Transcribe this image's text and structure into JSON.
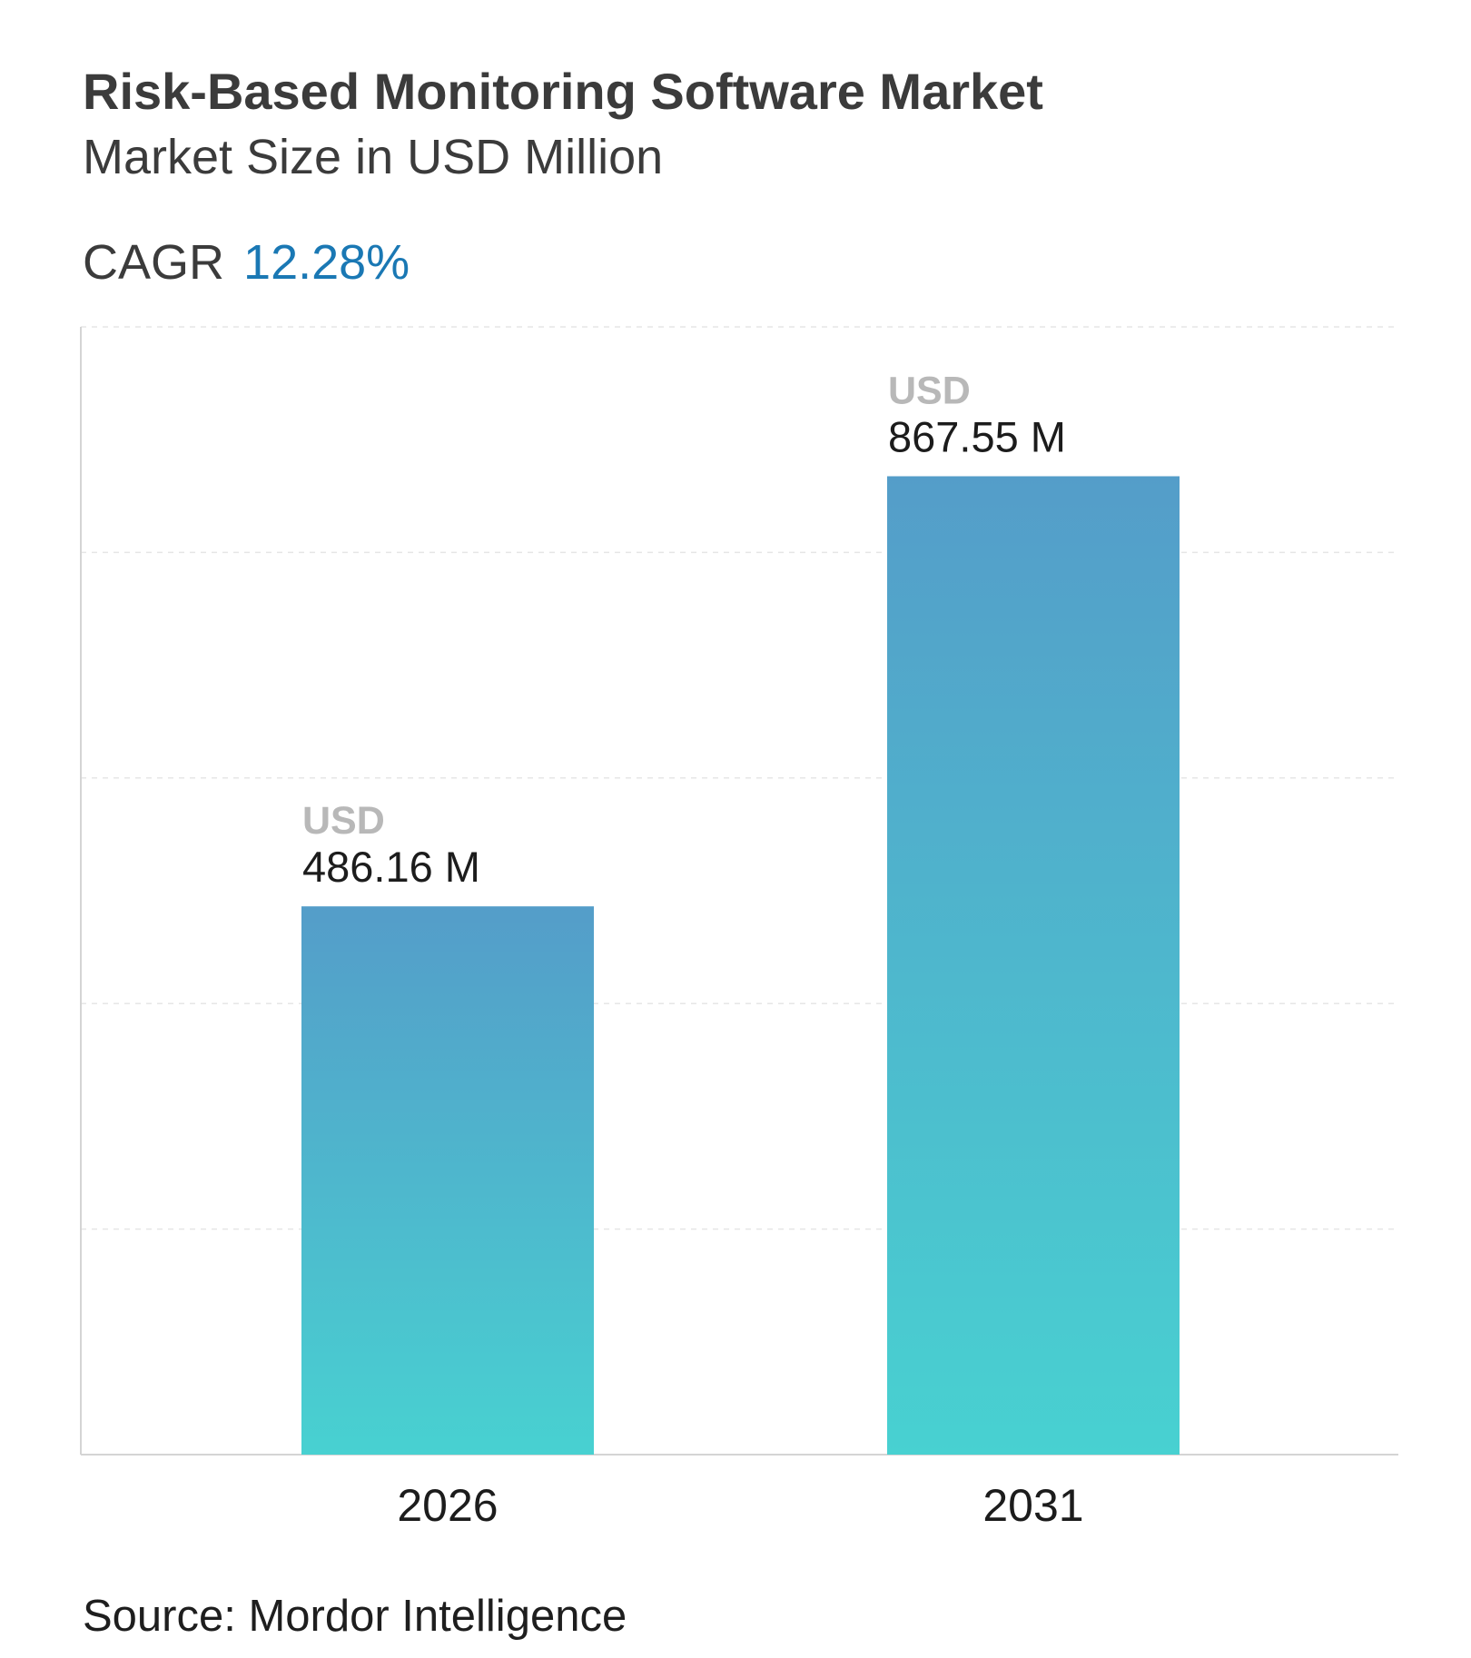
{
  "title": "Risk-Based Monitoring Software Market",
  "subtitle": "Market Size in USD Million",
  "cagr": {
    "label": "CAGR",
    "value": "12.28%"
  },
  "source": "Source: Mordor Intelligence",
  "colors": {
    "bar_top": "#549dc9",
    "bar_bottom": "#48d1d1",
    "cagr_value": "#1a78b4",
    "gridline": "#e6e6e6",
    "axis": "#d4d4d4"
  },
  "chart_data": {
    "type": "bar",
    "categories": [
      "2026",
      "2031"
    ],
    "values": [
      486.16,
      867.55
    ],
    "unit_label": "USD",
    "value_labels": [
      "486.16 M",
      "867.55 M"
    ],
    "ylim": [
      0,
      1000
    ],
    "grid": true,
    "legend": "none"
  }
}
